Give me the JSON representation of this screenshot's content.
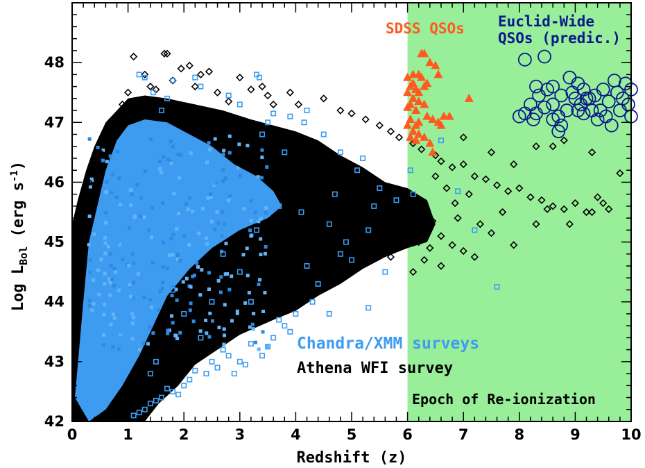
{
  "chart_data": {
    "type": "scatter",
    "xlabel": "Redshift (z)",
    "ylabel": {
      "prefix": "Log L",
      "subscript": "Bol",
      "suffix_text": " (erg s",
      "superscript": "-1",
      "close": ")"
    },
    "xlim": [
      0,
      10
    ],
    "ylim": [
      42,
      49
    ],
    "xticks": [
      0,
      1,
      2,
      3,
      4,
      5,
      6,
      7,
      8,
      9,
      10
    ],
    "yticks": [
      42,
      43,
      44,
      45,
      46,
      47,
      48
    ],
    "shaded_region": {
      "x_start": 6,
      "x_end": 10,
      "color": "#99ee99",
      "label": "Epoch of Re-ionization"
    },
    "annotations": [
      {
        "text": "SDSS QSOs",
        "color": "#ff5a1f"
      },
      {
        "text": "Euclid-Wide",
        "color": "#0a1a8a"
      },
      {
        "text": "QSOs (predic.)",
        "color": "#0a1a8a"
      },
      {
        "text": "Chandra/XMM surveys",
        "color": "#3d9cf0"
      },
      {
        "text": "Athena WFI survey",
        "color": "#000000"
      }
    ],
    "series": [
      {
        "id": "athena",
        "marker": "diamond",
        "color": "#000000",
        "points": [
          [
            1.1,
            48.1
          ],
          [
            1.65,
            48.15
          ],
          [
            1.7,
            48.15
          ],
          [
            2.1,
            47.95
          ],
          [
            2.45,
            47.85
          ],
          [
            1.3,
            47.8
          ],
          [
            3.0,
            47.75
          ],
          [
            3.4,
            47.6
          ],
          [
            3.9,
            47.5
          ],
          [
            4.05,
            47.3
          ],
          [
            4.5,
            47.4
          ],
          [
            4.8,
            47.2
          ],
          [
            5.0,
            47.15
          ],
          [
            5.25,
            47.05
          ],
          [
            5.5,
            46.95
          ],
          [
            5.7,
            46.85
          ],
          [
            5.85,
            46.75
          ],
          [
            6.1,
            46.65
          ],
          [
            6.25,
            46.55
          ],
          [
            6.5,
            46.45
          ],
          [
            6.6,
            46.35
          ],
          [
            6.8,
            46.25
          ],
          [
            7.0,
            46.3
          ],
          [
            7.2,
            46.1
          ],
          [
            7.4,
            46.05
          ],
          [
            7.6,
            45.95
          ],
          [
            7.8,
            45.85
          ],
          [
            8.0,
            45.9
          ],
          [
            8.2,
            45.75
          ],
          [
            8.4,
            45.7
          ],
          [
            8.6,
            45.6
          ],
          [
            8.8,
            45.55
          ],
          [
            9.0,
            45.65
          ],
          [
            9.2,
            45.5
          ],
          [
            9.4,
            45.75
          ],
          [
            9.6,
            45.55
          ],
          [
            9.3,
            46.5
          ],
          [
            9.8,
            46.15
          ],
          [
            8.8,
            46.7
          ],
          [
            8.6,
            46.6
          ],
          [
            8.3,
            46.6
          ],
          [
            7.5,
            46.5
          ],
          [
            7.0,
            46.75
          ],
          [
            7.9,
            46.3
          ],
          [
            6.2,
            45.0
          ],
          [
            6.4,
            44.9
          ],
          [
            6.6,
            45.1
          ],
          [
            6.8,
            44.95
          ],
          [
            7.0,
            44.85
          ],
          [
            7.2,
            44.75
          ],
          [
            7.5,
            45.15
          ],
          [
            7.7,
            45.5
          ],
          [
            6.3,
            44.7
          ],
          [
            6.6,
            44.6
          ],
          [
            6.1,
            44.5
          ],
          [
            6.9,
            45.4
          ],
          [
            7.1,
            45.8
          ],
          [
            6.7,
            45.9
          ],
          [
            6.5,
            46.1
          ],
          [
            8.3,
            45.3
          ],
          [
            9.3,
            45.5
          ],
          [
            9.5,
            45.65
          ],
          [
            8.9,
            45.3
          ],
          [
            8.5,
            45.55
          ],
          [
            7.3,
            45.3
          ],
          [
            6.2,
            45.6
          ],
          [
            6.45,
            45.35
          ],
          [
            6.85,
            45.65
          ],
          [
            7.9,
            44.95
          ],
          [
            5.3,
            44.95
          ],
          [
            5.5,
            44.85
          ],
          [
            5.7,
            44.75
          ],
          [
            4.9,
            44.5
          ],
          [
            5.1,
            44.6
          ],
          [
            4.7,
            44.4
          ],
          [
            4.4,
            44.3
          ],
          [
            4.2,
            44.2
          ],
          [
            0.3,
            46.0
          ],
          [
            0.5,
            46.5
          ],
          [
            0.7,
            46.8
          ],
          [
            0.9,
            47.3
          ],
          [
            1.0,
            47.5
          ],
          [
            0.6,
            46.7
          ],
          [
            0.4,
            46.2
          ],
          [
            0.35,
            45.6
          ],
          [
            0.2,
            45.2
          ],
          [
            1.4,
            47.6
          ],
          [
            1.8,
            47.7
          ],
          [
            2.2,
            47.6
          ],
          [
            2.6,
            47.5
          ],
          [
            3.2,
            47.55
          ],
          [
            3.6,
            47.3
          ],
          [
            2.8,
            47.35
          ],
          [
            3.5,
            47.45
          ],
          [
            2.3,
            47.8
          ],
          [
            1.95,
            47.9
          ],
          [
            1.5,
            47.55
          ],
          [
            0.15,
            44.8
          ]
        ]
      },
      {
        "id": "chandra",
        "marker": "square",
        "color": "#3d9cf0",
        "points": [
          [
            1.2,
            47.8
          ],
          [
            1.3,
            47.75
          ],
          [
            1.45,
            47.5
          ],
          [
            1.7,
            47.4
          ],
          [
            1.8,
            47.7
          ],
          [
            2.2,
            47.75
          ],
          [
            2.3,
            47.6
          ],
          [
            2.8,
            47.45
          ],
          [
            3.0,
            47.3
          ],
          [
            3.3,
            47.8
          ],
          [
            3.35,
            47.75
          ],
          [
            3.6,
            47.15
          ],
          [
            3.9,
            47.1
          ],
          [
            4.15,
            47.0
          ],
          [
            4.2,
            47.2
          ],
          [
            4.5,
            46.8
          ],
          [
            4.8,
            46.5
          ],
          [
            5.1,
            46.2
          ],
          [
            5.5,
            45.9
          ],
          [
            5.8,
            45.7
          ],
          [
            6.05,
            46.2
          ],
          [
            6.6,
            46.7
          ],
          [
            6.9,
            45.85
          ],
          [
            7.2,
            45.2
          ],
          [
            7.6,
            44.25
          ],
          [
            5.3,
            45.2
          ],
          [
            4.8,
            44.8
          ],
          [
            4.4,
            44.3
          ],
          [
            4.3,
            44.0
          ],
          [
            5.3,
            43.9
          ],
          [
            4.6,
            43.8
          ],
          [
            3.8,
            43.6
          ],
          [
            3.7,
            43.7
          ],
          [
            3.6,
            43.4
          ],
          [
            3.4,
            43.1
          ],
          [
            3.2,
            43.3
          ],
          [
            3.0,
            43.0
          ],
          [
            2.8,
            43.1
          ],
          [
            2.6,
            42.9
          ],
          [
            2.4,
            42.8
          ],
          [
            2.2,
            42.85
          ],
          [
            2.0,
            42.6
          ],
          [
            1.8,
            42.5
          ],
          [
            1.7,
            42.55
          ],
          [
            1.6,
            42.4
          ],
          [
            1.5,
            42.35
          ],
          [
            1.4,
            42.3
          ],
          [
            1.3,
            42.2
          ],
          [
            1.2,
            42.15
          ],
          [
            1.1,
            42.1
          ],
          [
            2.7,
            43.2
          ],
          [
            2.9,
            42.8
          ],
          [
            3.1,
            42.95
          ],
          [
            3.5,
            43.25
          ],
          [
            2.1,
            42.7
          ],
          [
            2.5,
            43.0
          ],
          [
            1.9,
            42.45
          ],
          [
            4.0,
            43.8
          ],
          [
            3.9,
            43.5
          ],
          [
            5.0,
            44.7
          ],
          [
            4.7,
            45.8
          ],
          [
            4.1,
            45.5
          ],
          [
            5.6,
            44.5
          ],
          [
            4.2,
            44.6
          ],
          [
            5.2,
            46.4
          ],
          [
            6.1,
            45.8
          ],
          [
            3.8,
            46.5
          ],
          [
            1.6,
            47.2
          ],
          [
            3.5,
            47.0
          ],
          [
            1.0,
            44.5
          ],
          [
            1.1,
            46.5
          ],
          [
            2.6,
            46.0
          ],
          [
            3.0,
            44.5
          ],
          [
            2.5,
            44.0
          ],
          [
            0.9,
            43.5
          ],
          [
            0.4,
            43.0
          ],
          [
            0.2,
            42.5
          ],
          [
            1.5,
            43.0
          ],
          [
            2.0,
            43.8
          ],
          [
            3.3,
            45.2
          ],
          [
            0.8,
            45.0
          ],
          [
            1.8,
            44.2
          ],
          [
            3.7,
            45.6
          ],
          [
            0.5,
            44.0
          ],
          [
            2.4,
            45.2
          ],
          [
            1.4,
            42.8
          ],
          [
            2.9,
            46.2
          ],
          [
            1.2,
            43.9
          ],
          [
            0.6,
            42.7
          ],
          [
            3.2,
            44.0
          ],
          [
            4.6,
            45.3
          ],
          [
            5.4,
            45.6
          ],
          [
            0.3,
            43.7
          ],
          [
            1.9,
            46.6
          ],
          [
            2.3,
            43.4
          ],
          [
            0.7,
            46.2
          ],
          [
            1.3,
            45.6
          ],
          [
            2.7,
            44.8
          ],
          [
            4.9,
            45.0
          ],
          [
            3.4,
            46.8
          ]
        ]
      },
      {
        "id": "sdss",
        "marker": "triangle",
        "color": "#ff5a1f",
        "points": [
          [
            6.0,
            47.75
          ],
          [
            6.05,
            47.6
          ],
          [
            6.1,
            47.65
          ],
          [
            6.15,
            47.55
          ],
          [
            6.2,
            47.8
          ],
          [
            6.25,
            48.15
          ],
          [
            6.3,
            48.15
          ],
          [
            6.4,
            48.0
          ],
          [
            6.5,
            47.95
          ],
          [
            6.55,
            47.8
          ],
          [
            6.3,
            47.6
          ],
          [
            6.1,
            47.4
          ],
          [
            6.2,
            47.35
          ],
          [
            6.0,
            47.25
          ],
          [
            6.15,
            47.2
          ],
          [
            6.05,
            47.05
          ],
          [
            6.2,
            47.0
          ],
          [
            6.35,
            47.1
          ],
          [
            6.45,
            47.05
          ],
          [
            6.55,
            47.0
          ],
          [
            6.65,
            47.1
          ],
          [
            6.75,
            47.1
          ],
          [
            6.6,
            46.95
          ],
          [
            6.0,
            46.95
          ],
          [
            6.1,
            46.85
          ],
          [
            6.2,
            46.8
          ],
          [
            6.3,
            46.75
          ],
          [
            6.05,
            46.75
          ],
          [
            6.15,
            46.7
          ],
          [
            6.4,
            46.65
          ],
          [
            6.45,
            46.5
          ],
          [
            7.1,
            47.4
          ],
          [
            6.25,
            47.75
          ],
          [
            6.35,
            47.65
          ],
          [
            6.0,
            47.5
          ],
          [
            6.1,
            47.8
          ],
          [
            6.2,
            47.5
          ],
          [
            6.05,
            47.3
          ],
          [
            6.3,
            47.3
          ],
          [
            6.15,
            46.95
          ]
        ]
      },
      {
        "id": "euclid",
        "marker": "circle",
        "color": "#0a1a8a",
        "points": [
          [
            8.1,
            48.05
          ],
          [
            8.45,
            48.1
          ],
          [
            8.3,
            47.6
          ],
          [
            8.35,
            47.45
          ],
          [
            8.5,
            47.55
          ],
          [
            8.6,
            47.6
          ],
          [
            8.75,
            47.45
          ],
          [
            8.9,
            47.75
          ],
          [
            9.05,
            47.65
          ],
          [
            9.15,
            47.55
          ],
          [
            9.35,
            47.45
          ],
          [
            9.5,
            47.55
          ],
          [
            9.7,
            47.7
          ],
          [
            9.9,
            47.65
          ],
          [
            10.0,
            47.55
          ],
          [
            9.95,
            47.3
          ],
          [
            9.8,
            47.2
          ],
          [
            9.6,
            47.35
          ],
          [
            9.45,
            47.2
          ],
          [
            9.25,
            47.4
          ],
          [
            9.1,
            47.3
          ],
          [
            9.0,
            47.4
          ],
          [
            8.85,
            47.2
          ],
          [
            8.7,
            47.1
          ],
          [
            8.6,
            47.3
          ],
          [
            8.45,
            47.25
          ],
          [
            8.3,
            47.15
          ],
          [
            8.2,
            47.3
          ],
          [
            8.1,
            47.15
          ],
          [
            8.0,
            47.1
          ],
          [
            8.25,
            47.05
          ],
          [
            8.6,
            47.05
          ],
          [
            8.75,
            46.95
          ],
          [
            8.7,
            46.85
          ],
          [
            9.15,
            47.15
          ],
          [
            9.4,
            47.05
          ],
          [
            9.3,
            47.2
          ],
          [
            9.2,
            47.4
          ],
          [
            9.75,
            47.5
          ],
          [
            9.55,
            47.1
          ],
          [
            9.65,
            46.95
          ],
          [
            9.85,
            47.4
          ],
          [
            10.0,
            47.1
          ],
          [
            9.05,
            47.2
          ],
          [
            8.95,
            47.5
          ]
        ]
      }
    ]
  }
}
